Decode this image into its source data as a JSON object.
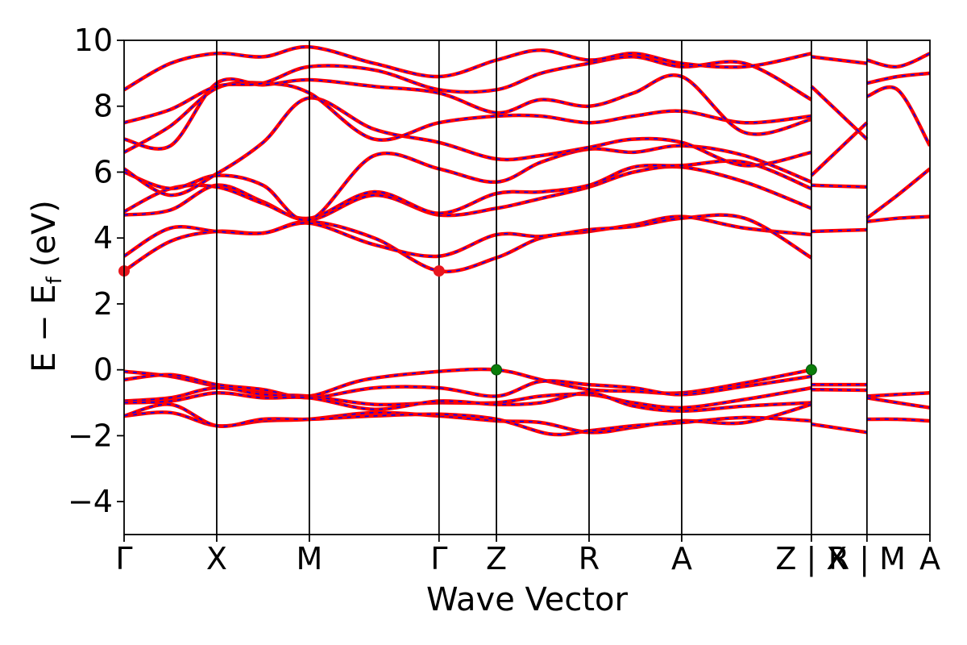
{
  "chart_data": {
    "type": "line",
    "xlabel": "Wave Vector",
    "ylabel": "E − E",
    "ylabel_sub": "f",
    "ylabel_unit": "(eV)",
    "ylim": [
      -5,
      10
    ],
    "yticks": [
      -4,
      -2,
      0,
      2,
      4,
      6,
      8,
      10
    ],
    "ytick_labels": [
      "−4",
      "−2",
      "0",
      "2",
      "4",
      "6",
      "8",
      "10"
    ],
    "xlim": [
      0,
      8.7
    ],
    "kpoints": [
      {
        "label": "Γ",
        "x": 0.0
      },
      {
        "label": "X",
        "x": 1.0
      },
      {
        "label": "M",
        "x": 2.0
      },
      {
        "label": "Γ",
        "x": 3.4
      },
      {
        "label": "Z",
        "x": 4.02
      },
      {
        "label": "R",
        "x": 5.02
      },
      {
        "label": "A",
        "x": 6.02
      },
      {
        "label": "Z | X",
        "x": 7.42
      },
      {
        "label": "R | M",
        "x": 8.02
      },
      {
        "label": "A",
        "x": 8.7
      }
    ],
    "colors": {
      "bands": "#ff0000",
      "bands_dash": "#0000ff",
      "cbm": "#e8161e",
      "vbm": "#0a7d0a"
    },
    "extrema": [
      {
        "label": "CBM",
        "x": 0.0,
        "y": 3.0
      },
      {
        "label": "CBM",
        "x": 3.4,
        "y": 3.0
      },
      {
        "label": "VBM",
        "x": 4.02,
        "y": 0.0
      },
      {
        "label": "VBM",
        "x": 7.42,
        "y": 0.0
      }
    ],
    "series": [
      {
        "values": [
          [
            0,
            -0.05
          ],
          [
            0.5,
            -0.2
          ],
          [
            1,
            -0.5
          ],
          [
            1.5,
            -0.7
          ],
          [
            2,
            -0.8
          ],
          [
            2.6,
            -0.3
          ],
          [
            3.4,
            -0.05
          ],
          [
            4.02,
            0.0
          ],
          [
            4.5,
            -0.3
          ],
          [
            5.02,
            -0.6
          ],
          [
            5.5,
            -0.65
          ],
          [
            6.02,
            -0.7
          ],
          [
            6.7,
            -0.4
          ],
          [
            7.42,
            0.0
          ]
        ]
      },
      {
        "values": [
          [
            0,
            -0.3
          ],
          [
            0.5,
            -0.15
          ],
          [
            1,
            -0.45
          ],
          [
            1.5,
            -0.6
          ],
          [
            2,
            -0.85
          ],
          [
            2.7,
            -0.55
          ],
          [
            3.4,
            -0.55
          ],
          [
            4.02,
            -0.8
          ],
          [
            4.5,
            -0.35
          ],
          [
            5.02,
            -0.45
          ],
          [
            5.5,
            -0.55
          ],
          [
            6.02,
            -0.75
          ],
          [
            6.7,
            -0.5
          ],
          [
            7.42,
            -0.2
          ]
        ]
      },
      {
        "values": [
          [
            0,
            -0.95
          ],
          [
            0.5,
            -0.85
          ],
          [
            1,
            -0.55
          ],
          [
            1.5,
            -0.75
          ],
          [
            2,
            -0.8
          ],
          [
            2.7,
            -1.05
          ],
          [
            3.4,
            -1.0
          ],
          [
            4.02,
            -1.0
          ],
          [
            4.5,
            -0.8
          ],
          [
            5.02,
            -0.75
          ],
          [
            5.5,
            -1.0
          ],
          [
            6.02,
            -1.15
          ],
          [
            6.7,
            -0.9
          ],
          [
            7.42,
            -0.55
          ]
        ]
      },
      {
        "values": [
          [
            0,
            -1.0
          ],
          [
            0.5,
            -0.95
          ],
          [
            1,
            -0.7
          ],
          [
            1.5,
            -0.85
          ],
          [
            2,
            -0.85
          ],
          [
            2.7,
            -1.2
          ],
          [
            3.4,
            -0.95
          ],
          [
            4.02,
            -1.05
          ],
          [
            4.5,
            -1.0
          ],
          [
            5.02,
            -0.7
          ],
          [
            5.5,
            -1.1
          ],
          [
            6.02,
            -1.25
          ],
          [
            6.7,
            -1.1
          ],
          [
            7.42,
            -1.0
          ]
        ]
      },
      {
        "values": [
          [
            0,
            -1.4
          ],
          [
            0.5,
            -1.3
          ],
          [
            1,
            -1.7
          ],
          [
            1.5,
            -1.55
          ],
          [
            2,
            -1.5
          ],
          [
            2.7,
            -1.3
          ],
          [
            3.4,
            -1.4
          ],
          [
            4.02,
            -1.55
          ],
          [
            4.5,
            -1.6
          ],
          [
            5.02,
            -1.9
          ],
          [
            5.5,
            -1.75
          ],
          [
            6.02,
            -1.55
          ],
          [
            6.7,
            -1.6
          ],
          [
            7.42,
            -1.05
          ]
        ]
      },
      {
        "values": [
          [
            0,
            -1.4
          ],
          [
            0.5,
            -1.05
          ],
          [
            1,
            -1.7
          ],
          [
            1.5,
            -1.5
          ],
          [
            2,
            -1.5
          ],
          [
            2.7,
            -1.4
          ],
          [
            3.4,
            -1.35
          ],
          [
            4.02,
            -1.5
          ],
          [
            4.6,
            -1.95
          ],
          [
            5.02,
            -1.85
          ],
          [
            5.5,
            -1.7
          ],
          [
            6.02,
            -1.6
          ],
          [
            6.7,
            -1.45
          ],
          [
            7.42,
            -1.55
          ]
        ]
      },
      {
        "values": [
          [
            7.42,
            -0.45
          ],
          [
            8.02,
            -0.45
          ]
        ]
      },
      {
        "values": [
          [
            7.42,
            -0.6
          ],
          [
            8.02,
            -0.62
          ]
        ]
      },
      {
        "values": [
          [
            7.42,
            -1.65
          ],
          [
            8.02,
            -1.9
          ]
        ]
      },
      {
        "values": [
          [
            8.02,
            -0.8
          ],
          [
            8.35,
            -0.75
          ],
          [
            8.7,
            -0.7
          ]
        ]
      },
      {
        "values": [
          [
            8.02,
            -0.85
          ],
          [
            8.35,
            -1.0
          ],
          [
            8.7,
            -1.15
          ]
        ]
      },
      {
        "values": [
          [
            8.02,
            -1.5
          ],
          [
            8.35,
            -1.5
          ],
          [
            8.7,
            -1.55
          ]
        ]
      },
      {
        "values": [
          [
            0,
            3.0
          ],
          [
            0.5,
            3.9
          ],
          [
            1,
            4.2
          ],
          [
            1.5,
            4.15
          ],
          [
            2,
            4.5
          ],
          [
            2.7,
            4.0
          ],
          [
            3.4,
            3.0
          ],
          [
            4.02,
            3.4
          ],
          [
            4.5,
            4.0
          ],
          [
            5.02,
            4.2
          ],
          [
            5.5,
            4.4
          ],
          [
            6.02,
            4.65
          ],
          [
            6.7,
            4.3
          ],
          [
            7.42,
            4.1
          ]
        ]
      },
      {
        "values": [
          [
            0,
            3.45
          ],
          [
            0.5,
            4.3
          ],
          [
            1,
            4.2
          ],
          [
            1.5,
            4.15
          ],
          [
            2,
            4.45
          ],
          [
            2.7,
            3.8
          ],
          [
            3.4,
            3.45
          ],
          [
            4.02,
            4.1
          ],
          [
            4.5,
            4.05
          ],
          [
            5.02,
            4.25
          ],
          [
            5.5,
            4.35
          ],
          [
            6.02,
            4.6
          ],
          [
            6.7,
            4.6
          ],
          [
            7.42,
            3.4
          ]
        ]
      },
      {
        "values": [
          [
            0,
            4.7
          ],
          [
            0.5,
            4.85
          ],
          [
            1,
            5.6
          ],
          [
            1.5,
            5.1
          ],
          [
            2,
            4.55
          ],
          [
            2.7,
            5.3
          ],
          [
            3.4,
            4.7
          ],
          [
            4.02,
            4.9
          ],
          [
            4.5,
            5.2
          ],
          [
            5.02,
            5.55
          ],
          [
            5.5,
            6.0
          ],
          [
            6.02,
            6.15
          ],
          [
            6.7,
            5.7
          ],
          [
            7.42,
            4.9
          ]
        ]
      },
      {
        "values": [
          [
            0,
            4.8
          ],
          [
            0.5,
            5.5
          ],
          [
            1,
            5.55
          ],
          [
            1.5,
            5.05
          ],
          [
            2,
            4.6
          ],
          [
            2.7,
            5.4
          ],
          [
            3.4,
            4.75
          ],
          [
            4.02,
            5.35
          ],
          [
            4.5,
            5.4
          ],
          [
            5.02,
            5.6
          ],
          [
            5.5,
            6.15
          ],
          [
            6.02,
            6.2
          ],
          [
            6.7,
            6.3
          ],
          [
            7.42,
            5.5
          ]
        ]
      },
      {
        "values": [
          [
            0,
            6.0
          ],
          [
            0.5,
            5.5
          ],
          [
            1,
            5.9
          ],
          [
            1.5,
            5.6
          ],
          [
            2,
            4.55
          ],
          [
            2.7,
            6.5
          ],
          [
            3.4,
            6.1
          ],
          [
            4.02,
            5.7
          ],
          [
            4.5,
            6.3
          ],
          [
            5.02,
            6.7
          ],
          [
            5.5,
            6.6
          ],
          [
            6.02,
            6.8
          ],
          [
            6.7,
            6.5
          ],
          [
            7.42,
            5.7
          ]
        ]
      },
      {
        "values": [
          [
            0,
            6.1
          ],
          [
            0.5,
            5.3
          ],
          [
            1,
            5.95
          ],
          [
            1.5,
            6.9
          ],
          [
            2,
            8.25
          ],
          [
            2.7,
            7.3
          ],
          [
            3.4,
            6.9
          ],
          [
            4.02,
            6.4
          ],
          [
            4.5,
            6.5
          ],
          [
            5.02,
            6.75
          ],
          [
            5.5,
            7.0
          ],
          [
            6.02,
            6.9
          ],
          [
            6.7,
            6.2
          ],
          [
            7.42,
            6.6
          ]
        ]
      },
      {
        "values": [
          [
            0,
            6.6
          ],
          [
            0.5,
            7.4
          ],
          [
            1,
            8.55
          ],
          [
            1.5,
            8.7
          ],
          [
            2,
            8.4
          ],
          [
            2.7,
            7.0
          ],
          [
            3.4,
            7.5
          ],
          [
            4.02,
            7.7
          ],
          [
            4.5,
            7.7
          ],
          [
            5.02,
            7.5
          ],
          [
            5.5,
            7.7
          ],
          [
            6.02,
            7.85
          ],
          [
            6.7,
            7.5
          ],
          [
            7.42,
            7.7
          ]
        ]
      },
      {
        "values": [
          [
            0,
            7.0
          ],
          [
            0.5,
            6.8
          ],
          [
            1,
            8.7
          ],
          [
            1.5,
            8.65
          ],
          [
            2,
            8.8
          ],
          [
            2.7,
            8.6
          ],
          [
            3.4,
            8.4
          ],
          [
            4.02,
            7.8
          ],
          [
            4.5,
            8.2
          ],
          [
            5.02,
            8.0
          ],
          [
            5.5,
            8.4
          ],
          [
            6.02,
            8.9
          ],
          [
            6.7,
            7.2
          ],
          [
            7.42,
            7.6
          ]
        ]
      },
      {
        "values": [
          [
            0,
            7.5
          ],
          [
            0.5,
            7.9
          ],
          [
            1,
            8.6
          ],
          [
            1.5,
            8.7
          ],
          [
            2,
            9.2
          ],
          [
            2.7,
            9.1
          ],
          [
            3.4,
            8.5
          ],
          [
            4.02,
            8.5
          ],
          [
            4.5,
            9.0
          ],
          [
            5.02,
            9.3
          ],
          [
            5.5,
            9.5
          ],
          [
            6.02,
            9.2
          ],
          [
            6.7,
            9.3
          ],
          [
            7.42,
            8.2
          ]
        ]
      },
      {
        "values": [
          [
            0,
            8.5
          ],
          [
            0.5,
            9.3
          ],
          [
            1,
            9.6
          ],
          [
            1.5,
            9.5
          ],
          [
            2,
            9.8
          ],
          [
            2.7,
            9.3
          ],
          [
            3.4,
            8.9
          ],
          [
            4.02,
            9.4
          ],
          [
            4.5,
            9.7
          ],
          [
            5.02,
            9.4
          ],
          [
            5.5,
            9.6
          ],
          [
            6.02,
            9.3
          ],
          [
            6.7,
            9.2
          ],
          [
            7.42,
            9.6
          ]
        ]
      },
      {
        "values": [
          [
            7.42,
            4.2
          ],
          [
            8.02,
            4.25
          ]
        ]
      },
      {
        "values": [
          [
            7.42,
            5.6
          ],
          [
            8.02,
            5.55
          ]
        ]
      },
      {
        "values": [
          [
            7.42,
            5.9
          ],
          [
            8.02,
            7.5
          ]
        ]
      },
      {
        "values": [
          [
            7.42,
            8.6
          ],
          [
            8.02,
            7.0
          ]
        ]
      },
      {
        "values": [
          [
            7.42,
            9.5
          ],
          [
            8.02,
            9.3
          ]
        ]
      },
      {
        "values": [
          [
            8.02,
            4.5
          ],
          [
            8.35,
            4.6
          ],
          [
            8.7,
            4.65
          ]
        ]
      },
      {
        "values": [
          [
            8.02,
            4.6
          ],
          [
            8.35,
            5.3
          ],
          [
            8.7,
            6.1
          ]
        ]
      },
      {
        "values": [
          [
            8.02,
            8.3
          ],
          [
            8.35,
            8.5
          ],
          [
            8.7,
            6.8
          ]
        ]
      },
      {
        "values": [
          [
            8.02,
            8.7
          ],
          [
            8.35,
            8.9
          ],
          [
            8.7,
            9.0
          ]
        ]
      },
      {
        "values": [
          [
            8.02,
            9.4
          ],
          [
            8.35,
            9.2
          ],
          [
            8.7,
            9.6
          ]
        ]
      }
    ]
  }
}
